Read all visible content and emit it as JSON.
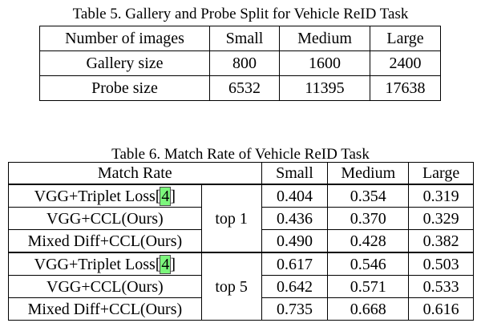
{
  "table5": {
    "caption": "Table 5. Gallery and Probe Split for Vehicle ReID Task",
    "header": [
      "Number of images",
      "Small",
      "Medium",
      "Large"
    ],
    "rows": [
      [
        "Gallery size",
        "800",
        "1600",
        "2400"
      ],
      [
        "Probe size",
        "6532",
        "11395",
        "17638"
      ]
    ]
  },
  "table6": {
    "caption": "Table 6. Match Rate of Vehicle ReID Task",
    "header": [
      "Match Rate",
      "Small",
      "Medium",
      "Large"
    ],
    "groups": [
      {
        "label": "top 1",
        "rows": [
          {
            "method": "VGG+Triplet Loss[",
            "cite": "4",
            "close": "]",
            "values": [
              "0.404",
              "0.354",
              "0.319"
            ]
          },
          {
            "method": "VGG+CCL(Ours)",
            "cite": "",
            "close": "",
            "values": [
              "0.436",
              "0.370",
              "0.329"
            ]
          },
          {
            "method": "Mixed Diff+CCL(Ours)",
            "cite": "",
            "close": "",
            "values": [
              "0.490",
              "0.428",
              "0.382"
            ]
          }
        ]
      },
      {
        "label": "top 5",
        "rows": [
          {
            "method": "VGG+Triplet Loss[",
            "cite": "4",
            "close": "]",
            "values": [
              "0.617",
              "0.546",
              "0.503"
            ]
          },
          {
            "method": "VGG+CCL(Ours)",
            "cite": "",
            "close": "",
            "values": [
              "0.642",
              "0.571",
              "0.533"
            ]
          },
          {
            "method": "Mixed Diff+CCL(Ours)",
            "cite": "",
            "close": "",
            "values": [
              "0.735",
              "0.668",
              "0.616"
            ]
          }
        ]
      }
    ]
  }
}
